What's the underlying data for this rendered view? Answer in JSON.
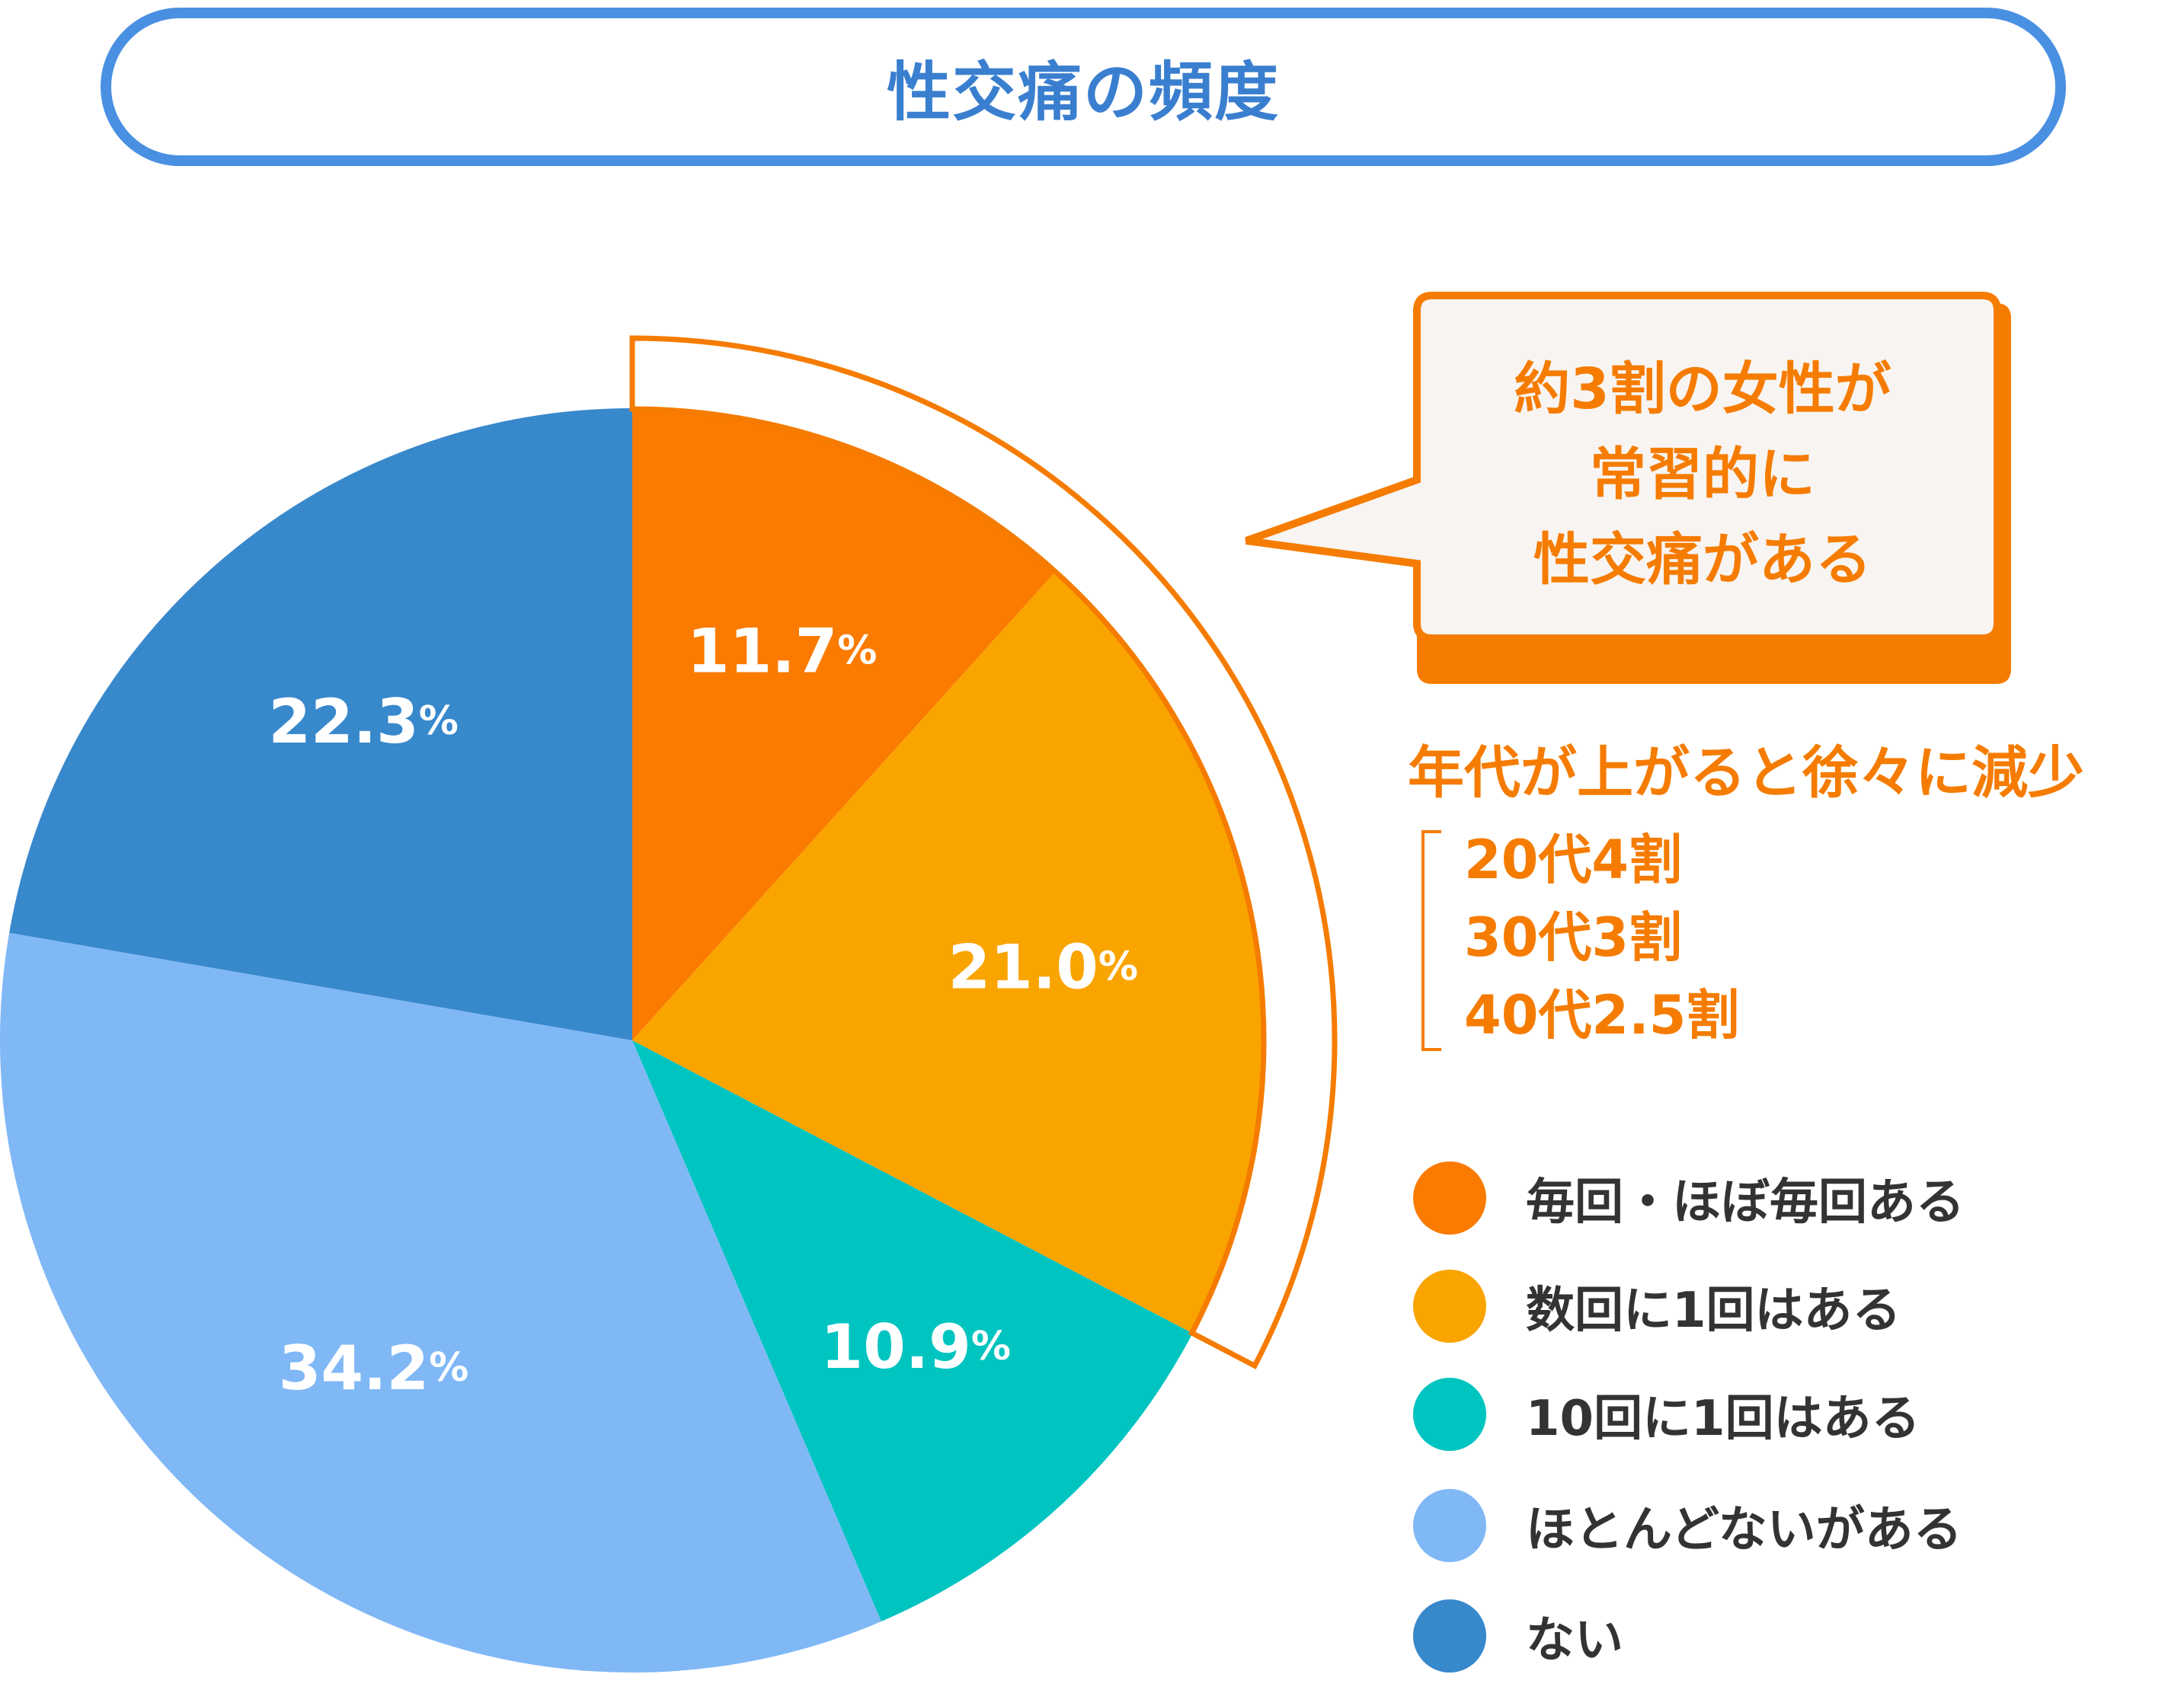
{
  "title": "性交痛の頻度",
  "callout": {
    "lines": [
      "約3割の女性が",
      "常習的に",
      "性交痛がある"
    ]
  },
  "trend": {
    "title": "年代が上がると徐々に減少",
    "items": [
      "20代4割",
      "30代3割",
      "40代2.5割"
    ]
  },
  "colors": {
    "accent_orange": "#f57c00",
    "title_blue": "#4a90e2"
  },
  "chart_data": {
    "type": "pie",
    "title": "性交痛の頻度",
    "unit": "%",
    "slices": [
      {
        "label": "毎回・ほぼ毎回ある",
        "value": 11.7,
        "display": "11.7",
        "color": "#fa7b00"
      },
      {
        "label": "数回に1回はある",
        "value": 21.0,
        "display": "21.0",
        "color": "#faa400"
      },
      {
        "label": "10回に1回はある",
        "value": 10.9,
        "display": "10.9",
        "color": "#00c4c0"
      },
      {
        "label": "ほとんどないがある",
        "value": 34.2,
        "display": "34.2",
        "color": "#80b8f6"
      },
      {
        "label": "ない",
        "value": 22.3,
        "display": "22.3",
        "color": "#3888cc"
      }
    ],
    "start": "12 o'clock",
    "direction": "clockwise",
    "highlighted_slices": [
      "毎回・ほぼ毎回ある",
      "数回に1回はある"
    ],
    "legend_position": "right"
  }
}
